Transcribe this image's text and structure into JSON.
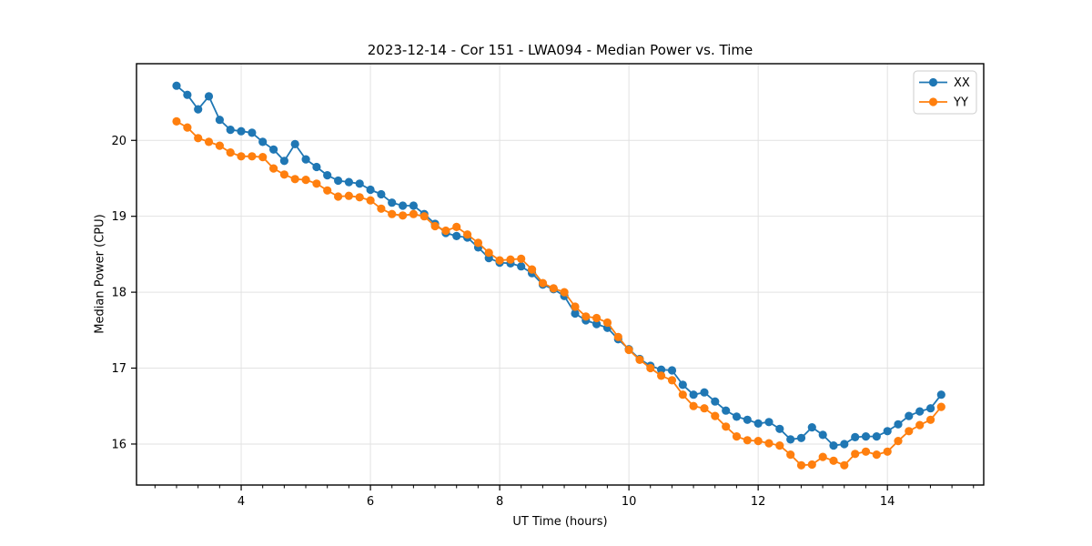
{
  "figure": {
    "background": "#ffffff"
  },
  "chart_data": {
    "type": "line",
    "title": "2023-12-14 - Cor 151 - LWA094 - Median Power vs. Time",
    "xlabel": "UT Time (hours)",
    "ylabel": "Median Power (CPU)",
    "xlim": [
      2.38,
      15.49
    ],
    "ylim": [
      15.46,
      21.01
    ],
    "xticks": [
      4,
      6,
      8,
      10,
      12,
      14
    ],
    "yticks": [
      16,
      17,
      18,
      19,
      20
    ],
    "x_minor_step": 0.3333,
    "grid": true,
    "grid_color": "#e2e2e2",
    "legend_position": "upper right",
    "x": [
      3.0,
      3.167,
      3.333,
      3.5,
      3.667,
      3.833,
      4.0,
      4.167,
      4.333,
      4.5,
      4.667,
      4.833,
      5.0,
      5.167,
      5.333,
      5.5,
      5.667,
      5.833,
      6.0,
      6.167,
      6.333,
      6.5,
      6.667,
      6.833,
      7.0,
      7.167,
      7.333,
      7.5,
      7.667,
      7.833,
      8.0,
      8.167,
      8.333,
      8.5,
      8.667,
      8.833,
      9.0,
      9.167,
      9.333,
      9.5,
      9.667,
      9.833,
      10.0,
      10.167,
      10.333,
      10.5,
      10.667,
      10.833,
      11.0,
      11.167,
      11.333,
      11.5,
      11.667,
      11.833,
      12.0,
      12.167,
      12.333,
      12.5,
      12.667,
      12.833,
      13.0,
      13.167,
      13.333,
      13.5,
      13.667,
      13.833,
      14.0,
      14.167,
      14.333,
      14.5,
      14.667,
      14.833
    ],
    "series": [
      {
        "name": "XX",
        "color": "#1f77b4",
        "marker": "circle",
        "values": [
          20.72,
          20.6,
          20.41,
          20.58,
          20.27,
          20.14,
          20.12,
          20.1,
          19.98,
          19.88,
          19.73,
          19.95,
          19.75,
          19.65,
          19.54,
          19.47,
          19.45,
          19.43,
          19.35,
          19.29,
          19.18,
          19.14,
          19.14,
          19.03,
          18.9,
          18.78,
          18.74,
          18.72,
          18.59,
          18.45,
          18.39,
          18.38,
          18.34,
          18.25,
          18.1,
          18.04,
          17.95,
          17.72,
          17.63,
          17.58,
          17.53,
          17.38,
          17.25,
          17.12,
          17.03,
          16.98,
          16.97,
          16.78,
          16.65,
          16.68,
          16.56,
          16.44,
          16.36,
          16.32,
          16.27,
          16.29,
          16.2,
          16.06,
          16.08,
          16.22,
          16.12,
          15.98,
          16.0,
          16.09,
          16.1,
          16.1,
          16.17,
          16.26,
          16.37,
          16.43,
          16.47,
          16.65
        ]
      },
      {
        "name": "YY",
        "color": "#ff7f0e",
        "marker": "circle",
        "values": [
          20.25,
          20.17,
          20.03,
          19.98,
          19.93,
          19.84,
          19.79,
          19.79,
          19.78,
          19.63,
          19.55,
          19.49,
          19.48,
          19.43,
          19.34,
          19.26,
          19.27,
          19.25,
          19.21,
          19.1,
          19.03,
          19.01,
          19.03,
          19.0,
          18.87,
          18.81,
          18.86,
          18.76,
          18.65,
          18.52,
          18.42,
          18.43,
          18.44,
          18.3,
          18.12,
          18.05,
          18.0,
          17.81,
          17.68,
          17.66,
          17.6,
          17.41,
          17.24,
          17.11,
          17.0,
          16.9,
          16.84,
          16.65,
          16.5,
          16.47,
          16.37,
          16.23,
          16.1,
          16.05,
          16.04,
          16.01,
          15.98,
          15.86,
          15.72,
          15.73,
          15.83,
          15.78,
          15.72,
          15.87,
          15.9,
          15.86,
          15.9,
          16.04,
          16.17,
          16.25,
          16.32,
          16.49
        ]
      }
    ]
  }
}
